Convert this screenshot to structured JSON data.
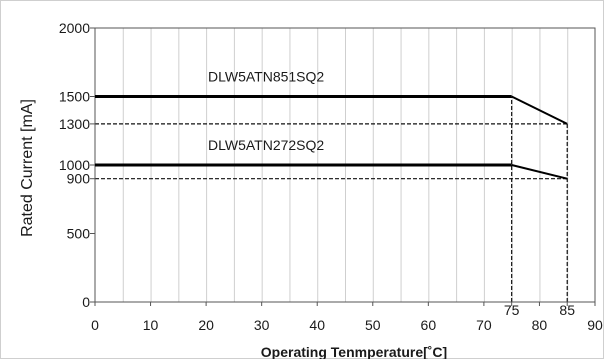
{
  "chart_data": {
    "type": "line",
    "xlabel": "Operating Tenmperature[˚C]",
    "ylabel": "Rated Current [mA]",
    "xlim": [
      0,
      90
    ],
    "ylim": [
      0,
      2000
    ],
    "x_ticks": [
      {
        "value": 0,
        "label": "0"
      },
      {
        "value": 10,
        "label": "10"
      },
      {
        "value": 20,
        "label": "20"
      },
      {
        "value": 30,
        "label": "30"
      },
      {
        "value": 40,
        "label": "40"
      },
      {
        "value": 50,
        "label": "50"
      },
      {
        "value": 60,
        "label": "60"
      },
      {
        "value": 70,
        "label": "70"
      },
      {
        "value": 75,
        "label": "75",
        "raised": true
      },
      {
        "value": 80,
        "label": "80"
      },
      {
        "value": 85,
        "label": "85",
        "raised": true
      },
      {
        "value": 90,
        "label": "90"
      }
    ],
    "y_ticks": [
      {
        "value": 0,
        "label": "0"
      },
      {
        "value": 500,
        "label": "500"
      },
      {
        "value": 900,
        "label": "900"
      },
      {
        "value": 1000,
        "label": "1000"
      },
      {
        "value": 1300,
        "label": "1300"
      },
      {
        "value": 1500,
        "label": "1500"
      },
      {
        "value": 2000,
        "label": "2000"
      }
    ],
    "grid": {
      "vertical": true,
      "horizontal": false
    },
    "series": [
      {
        "name": "DLW5ATN851SQ2",
        "x": [
          0,
          75,
          85
        ],
        "y": [
          1500,
          1500,
          1300
        ]
      },
      {
        "name": "DLW5ATN272SQ2",
        "x": [
          0,
          75,
          85
        ],
        "y": [
          1000,
          1000,
          900
        ]
      }
    ],
    "reference_lines": [
      {
        "kind": "horizontal",
        "y": 1300,
        "x_to": 85
      },
      {
        "kind": "horizontal",
        "y": 900,
        "x_to": 85
      },
      {
        "kind": "vertical",
        "x": 75,
        "y_to": 1500
      },
      {
        "kind": "vertical",
        "x": 85,
        "y_to": 1300
      }
    ]
  }
}
